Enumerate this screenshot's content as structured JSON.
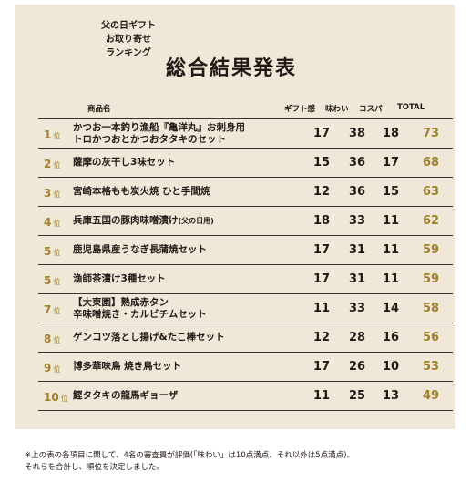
{
  "header": {
    "side_line1": "父の日ギフト",
    "side_line2": "お取り寄せ",
    "side_line3": "ランキング",
    "title": "総合結果発表"
  },
  "columns": {
    "product": "商品名",
    "gift": "ギフト感",
    "taste": "味わい",
    "cospa": "コスパ",
    "total": "TOTAL"
  },
  "rank_unit": "位",
  "rows": [
    {
      "rank": "1",
      "line1": "かつお一本釣り漁船『亀洋丸』お刺身用",
      "line2": "トロかつおとかつおタタキのセット",
      "gift": "17",
      "taste": "38",
      "cospa": "18",
      "total": "73"
    },
    {
      "rank": "2",
      "line1": "薩摩の灰干し3味セット",
      "gift": "15",
      "taste": "36",
      "cospa": "17",
      "total": "68"
    },
    {
      "rank": "3",
      "line1": "宮崎本格もも炭火焼 ひと手間焼",
      "gift": "12",
      "taste": "36",
      "cospa": "15",
      "total": "63"
    },
    {
      "rank": "4",
      "line1": "兵庫五国の豚肉味噌漬け",
      "suffix": "(父の日用)",
      "gift": "18",
      "taste": "33",
      "cospa": "11",
      "total": "62"
    },
    {
      "rank": "5",
      "line1": "鹿児島県産うなぎ長蒲焼セット",
      "gift": "17",
      "taste": "31",
      "cospa": "11",
      "total": "59"
    },
    {
      "rank": "5",
      "line1": "漁師茶漬け3種セット",
      "gift": "17",
      "taste": "31",
      "cospa": "11",
      "total": "59"
    },
    {
      "rank": "7",
      "line1": "【大東園】熟成赤タン",
      "line2": "辛味噌焼き・カルビチムセット",
      "gift": "11",
      "taste": "33",
      "cospa": "14",
      "total": "58"
    },
    {
      "rank": "8",
      "line1": "ゲンコツ落とし揚げ&たこ棒セット",
      "gift": "12",
      "taste": "28",
      "cospa": "16",
      "total": "56"
    },
    {
      "rank": "9",
      "line1": "博多華味鳥 焼き鳥セット",
      "gift": "17",
      "taste": "26",
      "cospa": "10",
      "total": "53"
    },
    {
      "rank": "10",
      "line1": "鰹タタキの龍馬ギョーザ",
      "gift": "11",
      "taste": "25",
      "cospa": "13",
      "total": "49"
    }
  ],
  "footnote": {
    "line1": "※上の表の各項目に関して、4名の審査員が評価(「味わい」は10点満点、それ以外は5点満点)。",
    "line2": "それらを合計し、順位を決定しました。"
  }
}
